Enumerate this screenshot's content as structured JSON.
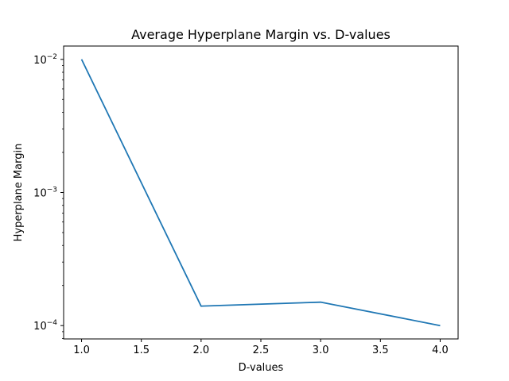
{
  "chart_data": {
    "type": "line",
    "title": "Average Hyperplane Margin vs. D-values",
    "xlabel": "D-values",
    "ylabel": "Hyperplane Margin",
    "x": [
      1.0,
      2.0,
      3.0,
      4.0
    ],
    "series": [
      {
        "values": [
          0.01,
          0.00014,
          0.00015,
          0.0001
        ],
        "color": "#1f77b4"
      }
    ],
    "xlim": [
      0.85,
      4.15
    ],
    "ylim": [
      7.94e-05,
      0.01259
    ],
    "yscale": "log",
    "xticks": [
      1.0,
      1.5,
      2.0,
      2.5,
      3.0,
      3.5,
      4.0
    ],
    "xtick_labels": [
      "1.0",
      "1.5",
      "2.0",
      "2.5",
      "3.0",
      "3.5",
      "4.0"
    ],
    "yticks": [
      0.0001,
      0.001,
      0.01
    ],
    "ytick_bases": [
      "10",
      "10",
      "10"
    ],
    "ytick_exponents": [
      "−4",
      "−3",
      "−2"
    ],
    "grid": false,
    "legend": "none"
  }
}
